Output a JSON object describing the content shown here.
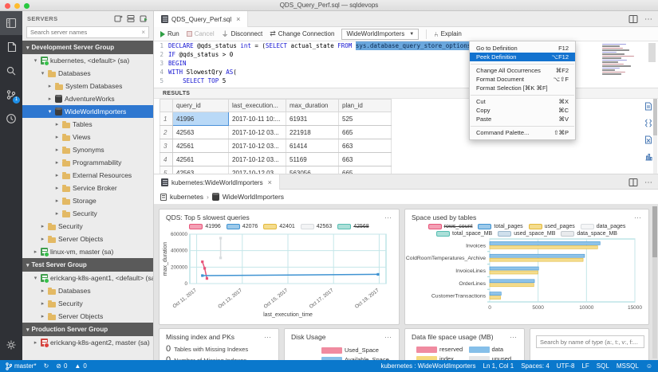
{
  "window": {
    "title": "QDS_Query_Perf.sql — sqldevops"
  },
  "activity_bar": {
    "scm_badge": "1"
  },
  "sidebar": {
    "header": "SERVERS",
    "search_placeholder": "Search server names",
    "tree": [
      {
        "label": "Development Server Group",
        "type": "group",
        "depth": 0,
        "arrow": "down"
      },
      {
        "label": "kubernetes, <default> (sa)",
        "type": "server-green",
        "depth": 1,
        "arrow": "down"
      },
      {
        "label": "Databases",
        "type": "folder",
        "depth": 2,
        "arrow": "down"
      },
      {
        "label": "System Databases",
        "type": "folder",
        "depth": 3,
        "arrow": "right"
      },
      {
        "label": "AdventureWorks",
        "type": "db",
        "depth": 3,
        "arrow": "right"
      },
      {
        "label": "WideWorldImporters",
        "type": "db",
        "depth": 3,
        "arrow": "down",
        "selected": true
      },
      {
        "label": "Tables",
        "type": "folder",
        "depth": 4,
        "arrow": "right"
      },
      {
        "label": "Views",
        "type": "folder",
        "depth": 4,
        "arrow": "right"
      },
      {
        "label": "Synonyms",
        "type": "folder",
        "depth": 4,
        "arrow": "right"
      },
      {
        "label": "Programmability",
        "type": "folder",
        "depth": 4,
        "arrow": "right"
      },
      {
        "label": "External Resources",
        "type": "folder",
        "depth": 4,
        "arrow": "right"
      },
      {
        "label": "Service Broker",
        "type": "folder",
        "depth": 4,
        "arrow": "right"
      },
      {
        "label": "Storage",
        "type": "folder",
        "depth": 4,
        "arrow": "right"
      },
      {
        "label": "Security",
        "type": "folder",
        "depth": 4,
        "arrow": "right"
      },
      {
        "label": "Security",
        "type": "folder",
        "depth": 2,
        "arrow": "right"
      },
      {
        "label": "Server Objects",
        "type": "folder",
        "depth": 2,
        "arrow": "right"
      },
      {
        "label": "linux-vm, master (sa)",
        "type": "server-green",
        "depth": 1,
        "arrow": "right"
      },
      {
        "label": "Test Server Group",
        "type": "group",
        "depth": 0,
        "arrow": "down"
      },
      {
        "label": "erickang-k8s-agent1, <default> (sa)",
        "type": "server-green",
        "depth": 1,
        "arrow": "down"
      },
      {
        "label": "Databases",
        "type": "folder",
        "depth": 2,
        "arrow": "right"
      },
      {
        "label": "Security",
        "type": "folder",
        "depth": 2,
        "arrow": "right"
      },
      {
        "label": "Server Objects",
        "type": "folder",
        "depth": 2,
        "arrow": "right"
      },
      {
        "label": "Production Server Group",
        "type": "group",
        "depth": 0,
        "arrow": "down"
      },
      {
        "label": "erickang-k8s-agent2, master (sa)",
        "type": "server-red",
        "depth": 1,
        "arrow": "right"
      }
    ]
  },
  "editor": {
    "tab_title": "QDS_Query_Perf.sql",
    "toolbar": {
      "run": "Run",
      "cancel": "Cancel",
      "disconnect": "Disconnect",
      "change_connection": "Change Connection",
      "database": "WideWorldImporters",
      "explain": "Explain"
    },
    "code_lines": [
      {
        "n": "1",
        "segs": [
          [
            "k",
            "DECLARE"
          ],
          [
            "t",
            " @qds_status "
          ],
          [
            "k",
            "int"
          ],
          [
            "t",
            " = ("
          ],
          [
            "k",
            "SELECT"
          ],
          [
            "t",
            " actual_state "
          ],
          [
            "k",
            "FROM"
          ],
          [
            "t",
            " "
          ],
          [
            "s",
            "sys.database_query_store_options"
          ]
        ]
      },
      {
        "n": "2",
        "segs": [
          [
            "k",
            "IF"
          ],
          [
            "t",
            " @qds_status > 0"
          ]
        ]
      },
      {
        "n": "3",
        "segs": [
          [
            "k",
            "BEGIN"
          ]
        ]
      },
      {
        "n": "4",
        "segs": [
          [
            "k",
            "WITH"
          ],
          [
            "t",
            " SlowestQry "
          ],
          [
            "k",
            "AS"
          ],
          [
            "t",
            "("
          ]
        ]
      },
      {
        "n": "5",
        "segs": [
          [
            "t",
            "    "
          ],
          [
            "k",
            "SELECT"
          ],
          [
            "t",
            " "
          ],
          [
            "k",
            "TOP"
          ],
          [
            "t",
            " 5"
          ]
        ]
      }
    ]
  },
  "context_menu": {
    "items": [
      {
        "label": "Go to Definition",
        "shortcut": "F12"
      },
      {
        "label": "Peek Definition",
        "shortcut": "⌥F12",
        "highlighted": true
      },
      {
        "sep": true
      },
      {
        "label": "Change All Occurrences",
        "shortcut": "⌘F2"
      },
      {
        "label": "Format Document",
        "shortcut": "⌥⇧F"
      },
      {
        "label": "Format Selection [⌘K ⌘F]",
        "shortcut": ""
      },
      {
        "sep": true
      },
      {
        "label": "Cut",
        "shortcut": "⌘X"
      },
      {
        "label": "Copy",
        "shortcut": "⌘C"
      },
      {
        "label": "Paste",
        "shortcut": "⌘V"
      },
      {
        "sep": true
      },
      {
        "label": "Command Palette...",
        "shortcut": "⇧⌘P"
      }
    ]
  },
  "results": {
    "header": "RESULTS",
    "columns": [
      "query_id",
      "last_execution...",
      "max_duration",
      "plan_id"
    ],
    "rows": [
      [
        "41996",
        "2017-10-11 10:...",
        "61931",
        "525"
      ],
      [
        "42563",
        "2017-10-12 03...",
        "221918",
        "665"
      ],
      [
        "42561",
        "2017-10-12 03...",
        "61414",
        "663"
      ],
      [
        "42561",
        "2017-10-12 03...",
        "51169",
        "663"
      ],
      [
        "42563",
        "2017-10-12 03...",
        "563056",
        "665"
      ]
    ]
  },
  "dashboard": {
    "tab_title": "kubernetes:WideWorldImporters",
    "breadcrumb": [
      "kubernetes",
      "WideWorldImporters"
    ],
    "missing_index": {
      "title": "Missing index and PKs",
      "stats": [
        {
          "value": "0",
          "label": "Tables with Missing Indexes"
        },
        {
          "value": "0",
          "label": "Number of Missing Indexes"
        },
        {
          "value": "0",
          "label": ""
        }
      ]
    },
    "disk_usage": {
      "title": "Disk Usage",
      "legend": [
        {
          "name": "Used_Space",
          "color": "#f08ba0"
        },
        {
          "name": "Available_Space",
          "color": "#85bfe9"
        }
      ]
    },
    "data_file": {
      "title": "Data file space usage (MB)",
      "legend": [
        {
          "name": "reserved",
          "color": "#f08ba0"
        },
        {
          "name": "data",
          "color": "#85bfe9"
        },
        {
          "name": "index",
          "color": "#f5d97d"
        },
        {
          "name": "unused",
          "color": "#e4e6e8"
        }
      ]
    },
    "search_placeholder": "Search by name of type (a:, t:, v:, f:..."
  },
  "chart_data": [
    {
      "type": "line",
      "title": "QDS: Top 5 slowest queries",
      "xlabel": "last_execution_time",
      "ylabel": "max_duration",
      "xlim": [
        10.7,
        19.3
      ],
      "ylim": [
        0,
        600000
      ],
      "yticks": [
        0,
        200000,
        400000,
        600000
      ],
      "xticks": [
        11,
        13,
        15,
        17,
        19
      ],
      "xtick_labels": [
        "Oct 11, 2017",
        "Oct 13, 2017",
        "Oct 15, 2017",
        "Oct 17, 2017",
        "Oct 19, 2017"
      ],
      "grid": true,
      "legend_position": "top",
      "series": [
        {
          "name": "41996",
          "stroke": "#e8557a",
          "fill": "#f3a0b5",
          "struck": false,
          "points": [
            [
              11.25,
              265000
            ],
            [
              11.35,
              185000
            ],
            [
              11.45,
              62000
            ]
          ]
        },
        {
          "name": "42076",
          "stroke": "#3f93d2",
          "fill": "#9cc9ea",
          "struck": false,
          "points": [
            [
              11.25,
              97000
            ],
            [
              18.95,
              112000
            ]
          ]
        },
        {
          "name": "42401",
          "stroke": "#e3b93c",
          "fill": "#f4dc8d",
          "struck": false,
          "points": []
        },
        {
          "name": "42563",
          "stroke": "#d8dcdf",
          "fill": "#f3f4f5",
          "struck": false,
          "points": [
            [
              12.05,
              552000
            ],
            [
              12.05,
              312000
            ]
          ]
        },
        {
          "name": "42568",
          "stroke": "#56bdb2",
          "fill": "#abdfd8",
          "struck": true,
          "points": []
        }
      ]
    },
    {
      "type": "bar",
      "orientation": "horizontal",
      "title": "Space used by tables",
      "categories": [
        "Invoices",
        "ColdRoomTemperatures_Archive",
        "InvoiceLines",
        "OrderLines",
        "CustomerTransactions"
      ],
      "xlim": [
        0,
        15000
      ],
      "xticks": [
        0,
        5000,
        10000,
        15000
      ],
      "grid": true,
      "legend": [
        {
          "name": "rows_count",
          "stroke": "#e8557a",
          "fill": "#f3a0b5",
          "struck": true
        },
        {
          "name": "total_pages",
          "stroke": "#3f93d2",
          "fill": "#9cc9ea",
          "struck": false
        },
        {
          "name": "used_pages",
          "stroke": "#e3b93c",
          "fill": "#f4dc8d",
          "struck": false
        },
        {
          "name": "data_pages",
          "stroke": "#d8dcdf",
          "fill": "#f5f6f7",
          "struck": false
        },
        {
          "name": "total_space_MB",
          "stroke": "#56bdb2",
          "fill": "#abdfd8",
          "struck": false
        },
        {
          "name": "used_space_MB",
          "stroke": "#9cb8cc",
          "fill": "#cfe0ec",
          "struck": false
        },
        {
          "name": "data_space_MB",
          "stroke": "#c3c9ce",
          "fill": "#e9ebed",
          "struck": false
        }
      ],
      "series": [
        {
          "name": "total_pages",
          "stroke": "#3f93d2",
          "fill": "#8fc3e8",
          "values": [
            11400,
            9800,
            5050,
            4620,
            1180
          ]
        },
        {
          "name": "used_pages",
          "stroke": "#e3b93c",
          "fill": "#f4dc8d",
          "values": [
            11150,
            9650,
            4980,
            4560,
            1120
          ]
        }
      ]
    }
  ],
  "status_bar": {
    "branch": "master*",
    "errors": "0",
    "warnings": "0",
    "right": [
      "kubernetes : WideWorldImporters",
      "Ln 1, Col 1",
      "Spaces: 4",
      "UTF-8",
      "LF",
      "SQL",
      "MSSQL"
    ]
  }
}
